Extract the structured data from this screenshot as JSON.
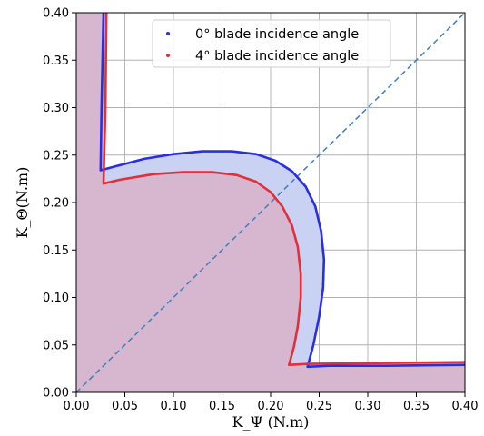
{
  "chart_data": {
    "type": "area",
    "title": "",
    "xlabel": "K_Ψ (N.m)",
    "ylabel": "K_Θ(N.m)",
    "xlim": [
      0.0,
      0.4
    ],
    "ylim": [
      0.0,
      0.4
    ],
    "grid": true,
    "legend_position": "top-center",
    "x_ticks": [
      "0.00",
      "0.05",
      "0.10",
      "0.15",
      "0.20",
      "0.25",
      "0.30",
      "0.35",
      "0.40"
    ],
    "y_ticks": [
      "0.00",
      "0.05",
      "0.10",
      "0.15",
      "0.20",
      "0.25",
      "0.30",
      "0.35",
      "0.40"
    ],
    "reference_line": {
      "from": [
        0.0,
        0.0
      ],
      "to": [
        0.4,
        0.4
      ],
      "style": "dashed"
    },
    "series": [
      {
        "name": "0° blade incidence angle",
        "color": "#2b2ee0",
        "fill": "#c9d2f2",
        "points": [
          [
            0.028,
            0.4
          ],
          [
            0.026,
            0.3
          ],
          [
            0.025,
            0.234
          ],
          [
            0.04,
            0.238
          ],
          [
            0.07,
            0.246
          ],
          [
            0.1,
            0.251
          ],
          [
            0.13,
            0.254
          ],
          [
            0.16,
            0.254
          ],
          [
            0.185,
            0.251
          ],
          [
            0.205,
            0.244
          ],
          [
            0.222,
            0.233
          ],
          [
            0.236,
            0.217
          ],
          [
            0.246,
            0.196
          ],
          [
            0.252,
            0.17
          ],
          [
            0.255,
            0.14
          ],
          [
            0.254,
            0.11
          ],
          [
            0.25,
            0.08
          ],
          [
            0.244,
            0.05
          ],
          [
            0.238,
            0.027
          ],
          [
            0.26,
            0.028
          ],
          [
            0.32,
            0.028
          ],
          [
            0.4,
            0.029
          ]
        ]
      },
      {
        "name": "4° blade incidence angle",
        "color": "#e0303a",
        "fill": "#d7b6cf",
        "points": [
          [
            0.031,
            0.4
          ],
          [
            0.03,
            0.3
          ],
          [
            0.028,
            0.22
          ],
          [
            0.045,
            0.224
          ],
          [
            0.08,
            0.23
          ],
          [
            0.11,
            0.232
          ],
          [
            0.14,
            0.232
          ],
          [
            0.165,
            0.229
          ],
          [
            0.185,
            0.222
          ],
          [
            0.2,
            0.211
          ],
          [
            0.212,
            0.196
          ],
          [
            0.222,
            0.176
          ],
          [
            0.228,
            0.153
          ],
          [
            0.231,
            0.125
          ],
          [
            0.231,
            0.1
          ],
          [
            0.228,
            0.07
          ],
          [
            0.224,
            0.048
          ],
          [
            0.219,
            0.029
          ],
          [
            0.24,
            0.03
          ],
          [
            0.32,
            0.031
          ],
          [
            0.4,
            0.032
          ]
        ]
      }
    ]
  }
}
